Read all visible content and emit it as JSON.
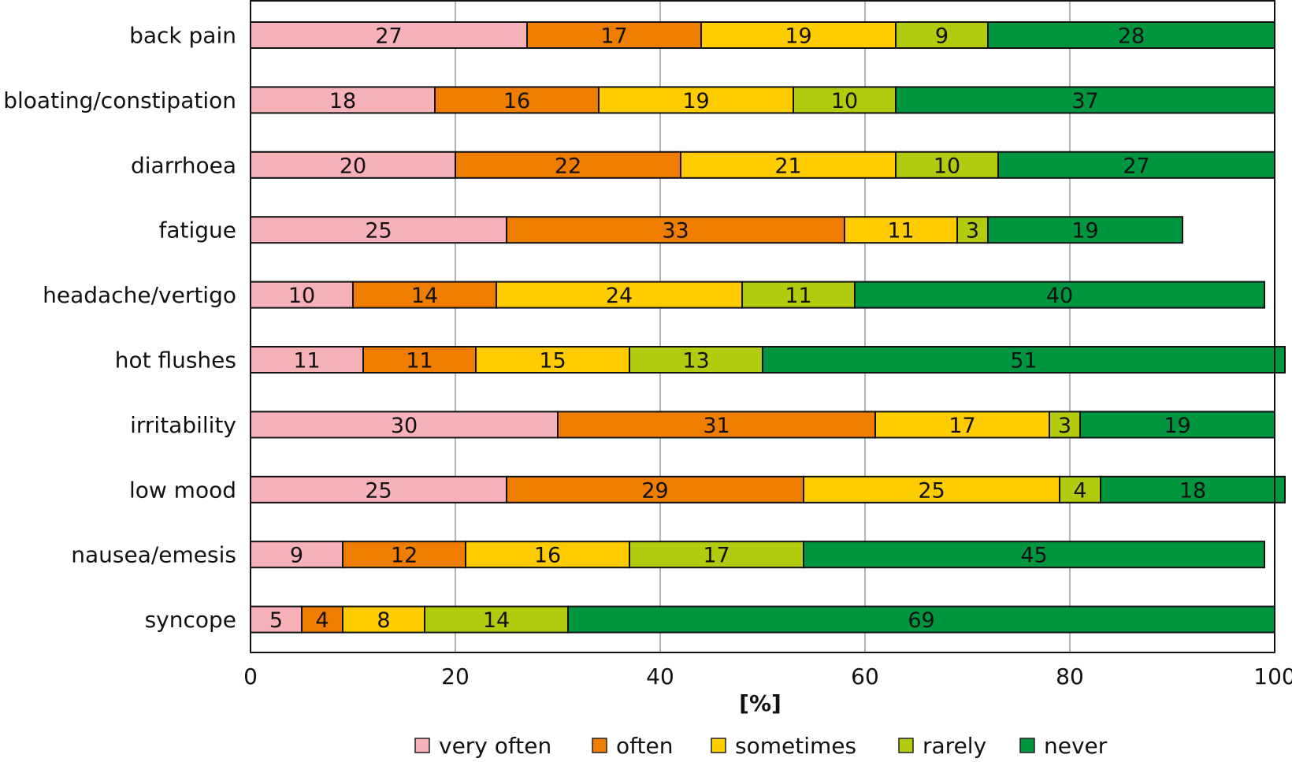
{
  "chart_data": {
    "type": "bar",
    "orientation": "horizontal",
    "stacked": true,
    "title": "",
    "xlabel": "[%]",
    "ylabel": "",
    "xlim": [
      0,
      100
    ],
    "xticks": [
      0,
      20,
      40,
      60,
      80,
      100
    ],
    "xtick_labels": [
      "0",
      "20",
      "40",
      "60",
      "80",
      "100"
    ],
    "grid": true,
    "legend_position": "bottom",
    "categories": [
      "back pain",
      "bloating/constipation",
      "diarrhoea",
      "fatigue",
      "headache/vertigo",
      "hot flushes",
      "irritability",
      "low mood",
      "nausea/emesis",
      "syncope"
    ],
    "series": [
      {
        "name": "very often",
        "color": "#f6b2b8",
        "values": [
          27,
          18,
          20,
          25,
          10,
          11,
          30,
          25,
          9,
          5
        ]
      },
      {
        "name": "often",
        "color": "#ef7d00",
        "values": [
          17,
          16,
          22,
          33,
          14,
          11,
          31,
          29,
          12,
          4
        ]
      },
      {
        "name": "sometimes",
        "color": "#ffcc00",
        "values": [
          19,
          19,
          21,
          11,
          24,
          15,
          17,
          25,
          16,
          8
        ]
      },
      {
        "name": "rarely",
        "color": "#b2cb0e",
        "values": [
          9,
          10,
          10,
          3,
          11,
          13,
          3,
          4,
          17,
          14
        ]
      },
      {
        "name": "never",
        "color": "#009640",
        "values": [
          28,
          37,
          27,
          19,
          40,
          51,
          19,
          18,
          45,
          69
        ]
      }
    ]
  }
}
